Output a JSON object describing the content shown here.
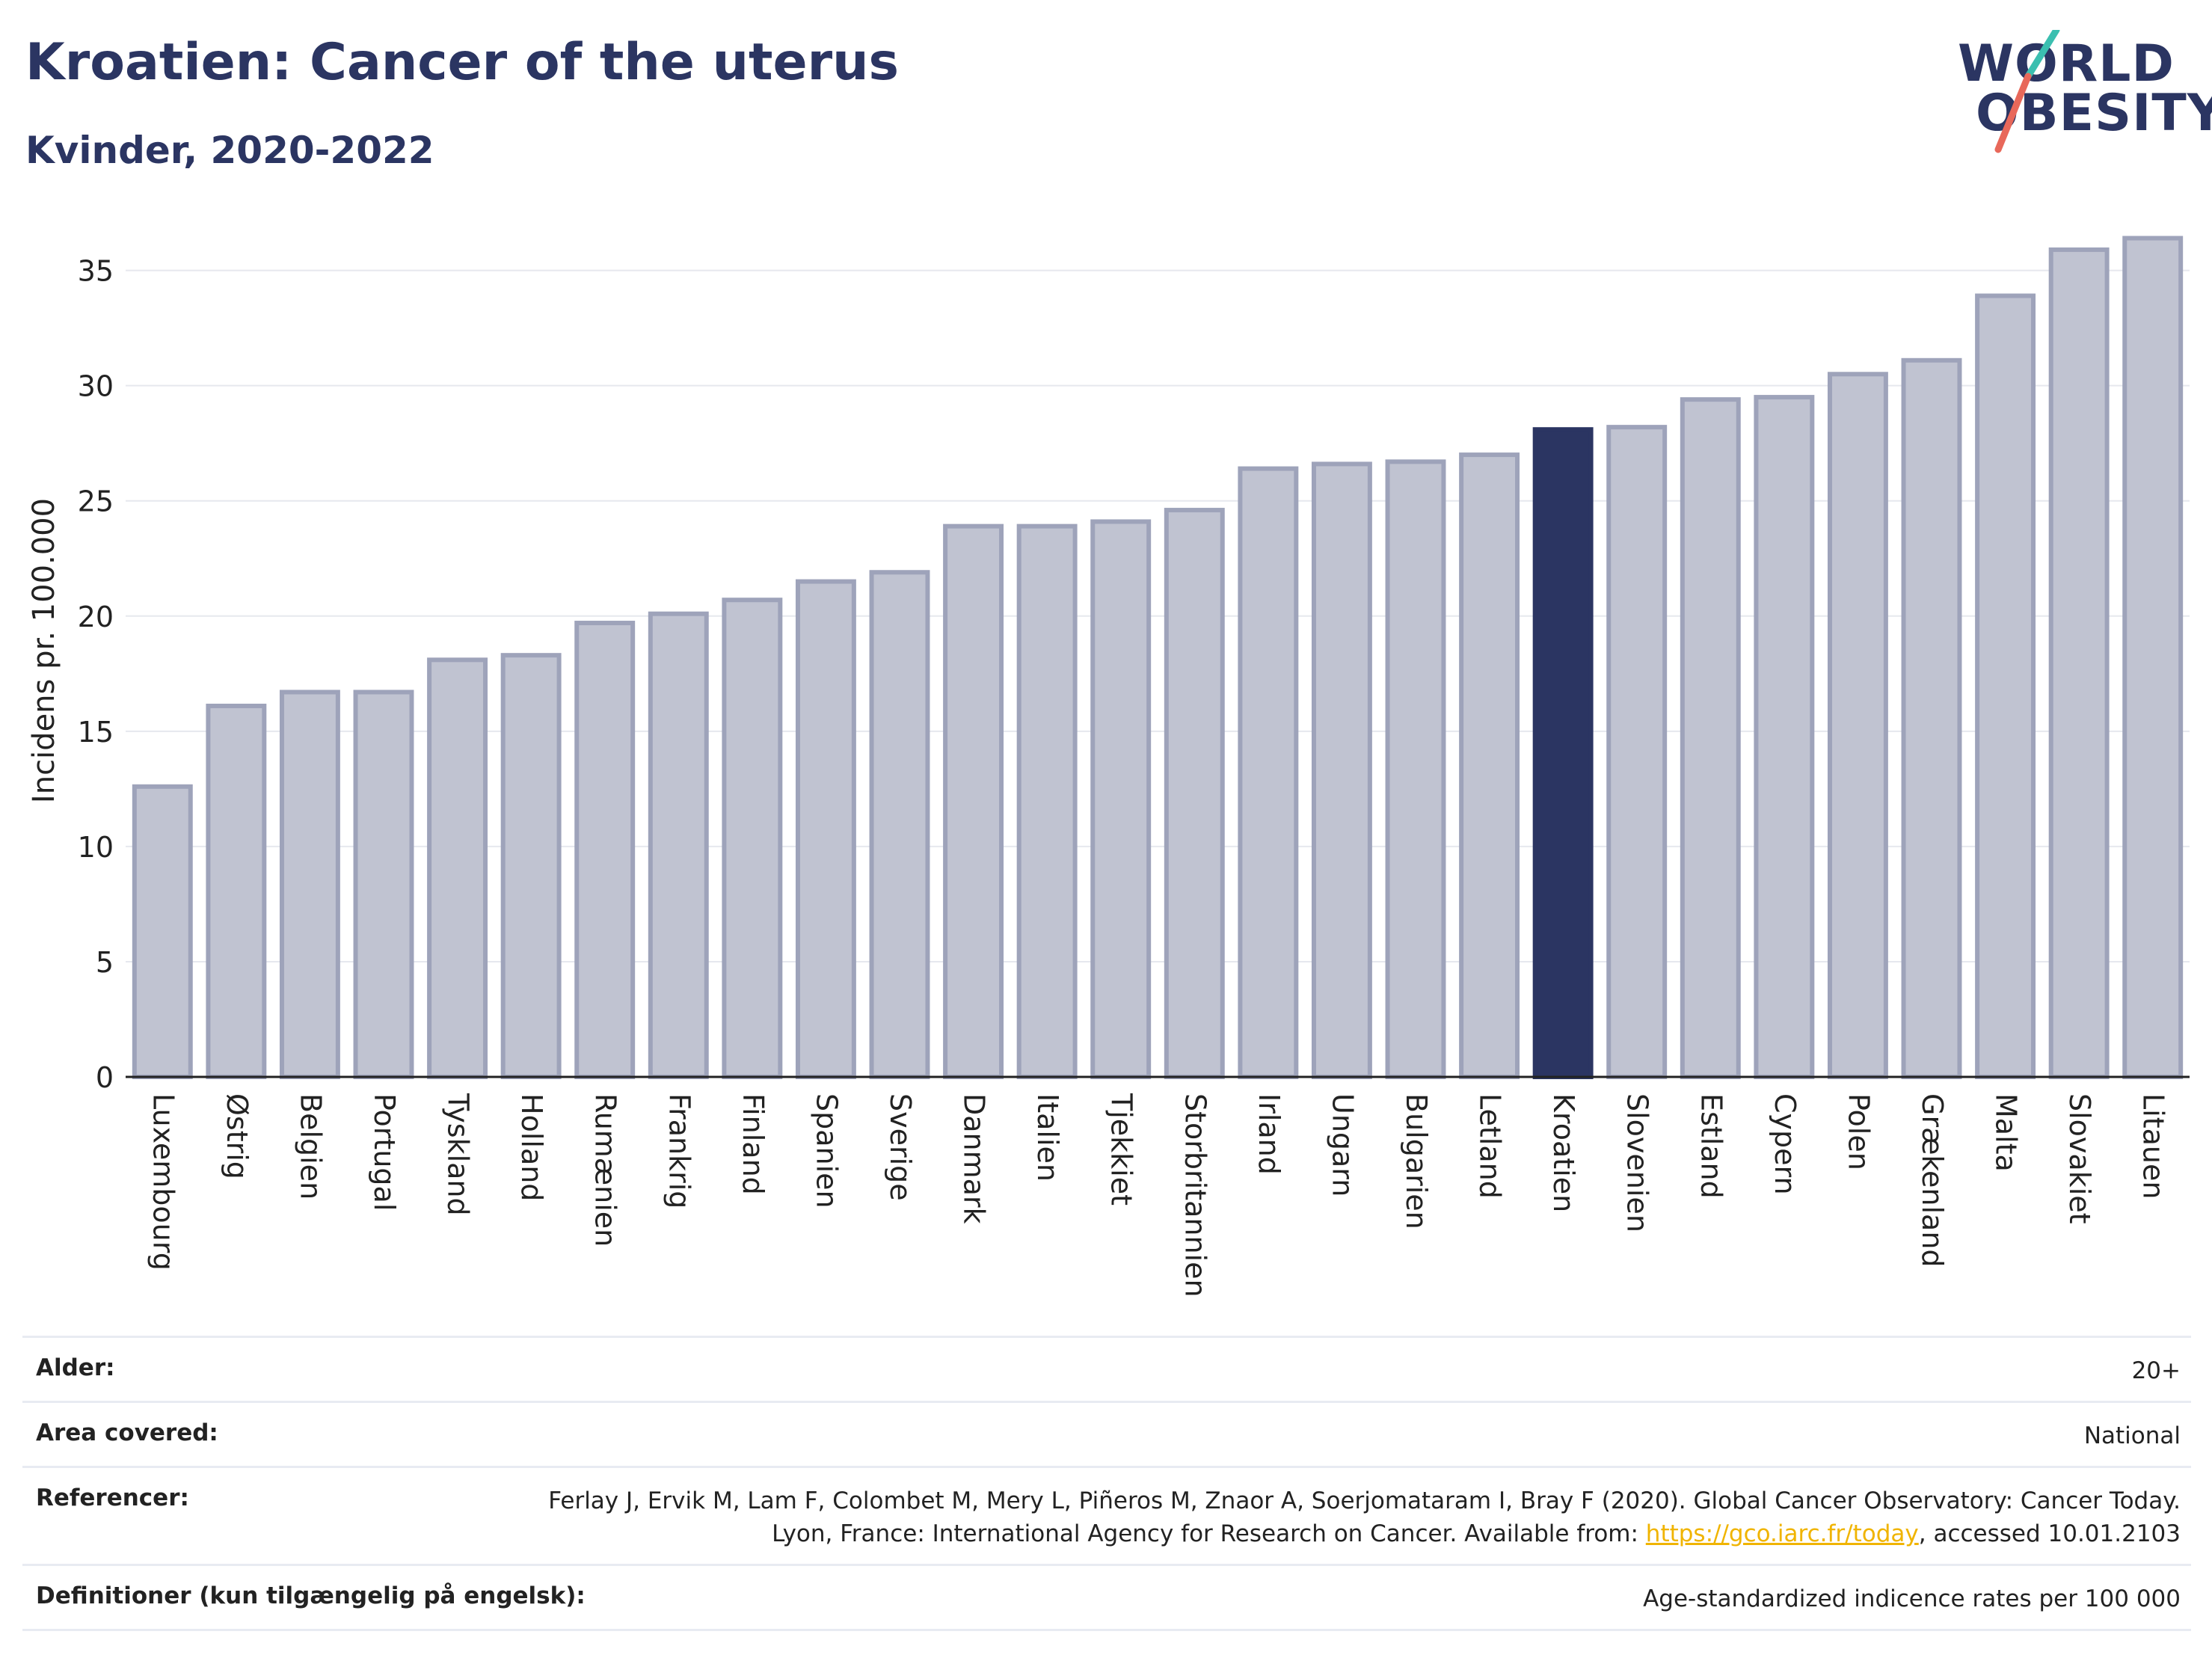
{
  "header": {
    "title": "Kroatien: Cancer of the uterus",
    "subtitle": "Kvinder, 2020-2022"
  },
  "logo": {
    "line1": "WORLD",
    "line2": "OBESITY"
  },
  "colors": {
    "bar": "#c0c3d1",
    "bar_border": "#9ea3ba",
    "highlight": "#2b3562",
    "grid": "#e6e8ee",
    "axis": "#222222"
  },
  "chart_data": {
    "type": "bar",
    "ylabel": "Incidens pr. 100.000",
    "xlabel": "",
    "ylim": [
      0,
      37
    ],
    "yticks": [
      0,
      5,
      10,
      15,
      20,
      25,
      30,
      35
    ],
    "grid": true,
    "highlight": "Kroatien",
    "categories": [
      "Luxembourg",
      "Østrig",
      "Belgien",
      "Portugal",
      "Tyskland",
      "Holland",
      "Rumænien",
      "Frankrig",
      "Finland",
      "Spanien",
      "Sverige",
      "Danmark",
      "Italien",
      "Tjekkiet",
      "Storbritannien",
      "Irland",
      "Ungarn",
      "Bulgarien",
      "Letland",
      "Kroatien",
      "Slovenien",
      "Estland",
      "Cypern",
      "Polen",
      "Grækenland",
      "Malta",
      "Slovakiet",
      "Litauen"
    ],
    "values": [
      12.6,
      16.1,
      16.7,
      16.7,
      18.1,
      18.3,
      19.7,
      20.1,
      20.7,
      21.5,
      21.9,
      23.9,
      23.9,
      24.1,
      24.6,
      26.4,
      26.6,
      26.7,
      27.0,
      28.1,
      28.2,
      29.4,
      29.5,
      30.5,
      31.1,
      33.9,
      35.9,
      36.4
    ]
  },
  "info": [
    {
      "key": "Alder:",
      "value": "20+"
    },
    {
      "key": "Area covered:",
      "value": "National"
    },
    {
      "key": "Referencer:",
      "value_pre": "Ferlay J, Ervik M, Lam F, Colombet M, Mery L, Piñeros M, Znaor A, Soerjomataram I, Bray F (2020). Global Cancer Observatory: Cancer Today. Lyon, France: International Agency for Research on Cancer. Available from: ",
      "link": "https://gco.iarc.fr/today",
      "value_post": ", accessed 10.01.2103"
    },
    {
      "key": "Definitioner (kun tilgængelig på engelsk):",
      "value": "Age-standardized indicence rates per 100 000"
    }
  ]
}
